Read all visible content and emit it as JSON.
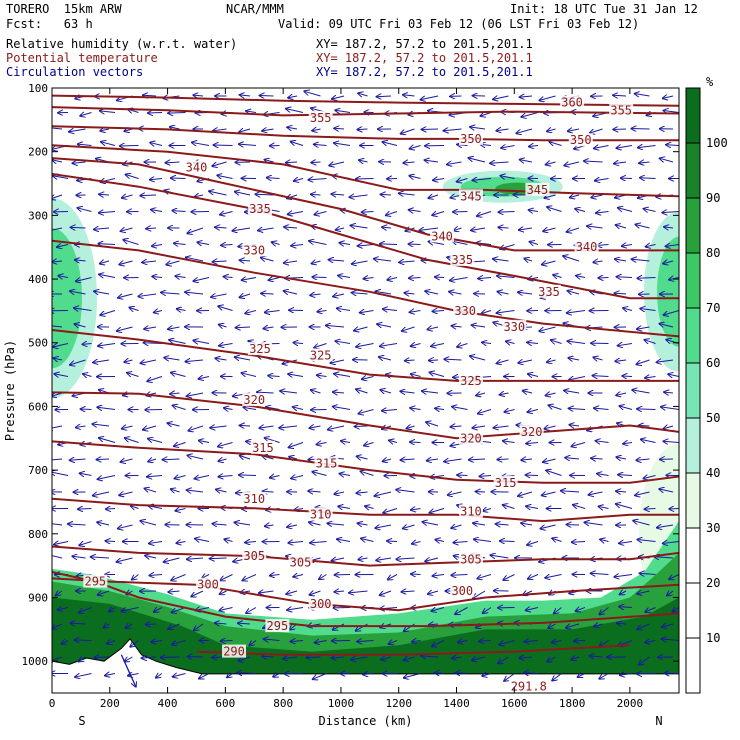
{
  "header": {
    "model": "TORERO  15km ARW",
    "org": "NCAR/MMM",
    "init": "Init: 18 UTC Tue 31 Jan 12",
    "fcst": "Fcst:   63 h",
    "valid": "Valid: 09 UTC Fri 03 Feb 12 (06 LST Fri 03 Feb 12)",
    "fields": [
      {
        "name": "Relative humidity (w.r.t. water)",
        "xy": "XY= 187.2, 57.2 to 201.5,201.1",
        "color": "#000000"
      },
      {
        "name": "Potential temperature",
        "xy": "XY= 187.2, 57.2 to 201.5,201.1",
        "color": "#8b1a1a"
      },
      {
        "name": "Circulation vectors",
        "xy": "XY= 187.2, 57.2 to 201.5,201.1",
        "color": "#00008b"
      }
    ]
  },
  "chart_data": {
    "type": "cross-section",
    "xlabel": "Distance (km)",
    "ylabel": "Pressure (hPa)",
    "xlim": [
      0,
      2170
    ],
    "ylim": [
      1050,
      100
    ],
    "x_ticks": [
      0,
      200,
      400,
      600,
      800,
      1000,
      1200,
      1400,
      1600,
      1800,
      2000
    ],
    "y_ticks": [
      100,
      200,
      300,
      400,
      500,
      600,
      700,
      800,
      900,
      1000
    ],
    "x_end_labels": {
      "left": "S",
      "right": "N"
    },
    "colorbar": {
      "unit": "%",
      "levels": [
        10,
        20,
        30,
        40,
        50,
        60,
        70,
        80,
        90,
        100
      ],
      "colors": [
        "#ffffff",
        "#ffffff",
        "#ffffff",
        "#e6fae6",
        "#b4f0dc",
        "#78e6b4",
        "#50dc8c",
        "#3cc864",
        "#28a03c",
        "#1a8228",
        "#0a6e1e"
      ]
    },
    "theta_contours": [
      {
        "value": 360,
        "points": [
          [
            0,
            112
          ],
          [
            400,
            115
          ],
          [
            800,
            120
          ],
          [
            1200,
            123
          ],
          [
            1600,
            125
          ],
          [
            2170,
            128
          ]
        ],
        "labels": [
          [
            1800,
            123
          ]
        ]
      },
      {
        "value": 355,
        "points": [
          [
            0,
            130
          ],
          [
            400,
            135
          ],
          [
            800,
            143
          ],
          [
            1200,
            140
          ],
          [
            1600,
            137
          ],
          [
            2170,
            140
          ]
        ],
        "labels": [
          [
            930,
            147
          ],
          [
            1970,
            135
          ]
        ]
      },
      {
        "value": 350,
        "points": [
          [
            0,
            160
          ],
          [
            400,
            165
          ],
          [
            800,
            175
          ],
          [
            1200,
            180
          ],
          [
            1400,
            180
          ],
          [
            1700,
            182
          ],
          [
            2170,
            182
          ]
        ],
        "labels": [
          [
            1450,
            180
          ],
          [
            1830,
            182
          ]
        ]
      },
      {
        "value": 345,
        "points": [
          [
            0,
            190
          ],
          [
            400,
            200
          ],
          [
            800,
            220
          ],
          [
            1200,
            260
          ],
          [
            1500,
            260
          ],
          [
            1800,
            265
          ],
          [
            2170,
            270
          ]
        ],
        "labels": [
          [
            1450,
            270
          ],
          [
            1680,
            260
          ]
        ]
      },
      {
        "value": 340,
        "points": [
          [
            0,
            210
          ],
          [
            300,
            220
          ],
          [
            600,
            250
          ],
          [
            1000,
            290
          ],
          [
            1300,
            330
          ],
          [
            1600,
            355
          ],
          [
            2170,
            355
          ]
        ],
        "labels": [
          [
            500,
            225
          ],
          [
            1350,
            333
          ],
          [
            1850,
            350
          ]
        ]
      },
      {
        "value": 335,
        "points": [
          [
            0,
            235
          ],
          [
            300,
            255
          ],
          [
            700,
            290
          ],
          [
            1000,
            330
          ],
          [
            1300,
            370
          ],
          [
            1600,
            395
          ],
          [
            2000,
            430
          ],
          [
            2170,
            430
          ]
        ],
        "labels": [
          [
            720,
            290
          ],
          [
            1420,
            370
          ],
          [
            1720,
            420
          ]
        ]
      },
      {
        "value": 330,
        "points": [
          [
            0,
            340
          ],
          [
            300,
            355
          ],
          [
            700,
            390
          ],
          [
            1100,
            420
          ],
          [
            1400,
            450
          ],
          [
            1700,
            470
          ],
          [
            2170,
            490
          ]
        ],
        "labels": [
          [
            700,
            355
          ],
          [
            1430,
            450
          ],
          [
            1600,
            475
          ]
        ]
      },
      {
        "value": 325,
        "points": [
          [
            0,
            480
          ],
          [
            300,
            495
          ],
          [
            700,
            520
          ],
          [
            1100,
            550
          ],
          [
            1400,
            560
          ],
          [
            1700,
            560
          ],
          [
            2000,
            560
          ],
          [
            2170,
            560
          ]
        ],
        "labels": [
          [
            720,
            510
          ],
          [
            930,
            520
          ],
          [
            1450,
            560
          ]
        ]
      },
      {
        "value": 320,
        "points": [
          [
            0,
            578
          ],
          [
            300,
            580
          ],
          [
            700,
            600
          ],
          [
            1100,
            630
          ],
          [
            1400,
            650
          ],
          [
            1700,
            640
          ],
          [
            2000,
            630
          ],
          [
            2170,
            640
          ]
        ],
        "labels": [
          [
            700,
            590
          ],
          [
            1450,
            650
          ],
          [
            1660,
            640
          ]
        ]
      },
      {
        "value": 315,
        "points": [
          [
            0,
            655
          ],
          [
            300,
            665
          ],
          [
            700,
            675
          ],
          [
            1100,
            700
          ],
          [
            1400,
            715
          ],
          [
            1700,
            720
          ],
          [
            2000,
            720
          ],
          [
            2170,
            710
          ]
        ],
        "labels": [
          [
            730,
            665
          ],
          [
            950,
            690
          ],
          [
            1570,
            720
          ]
        ]
      },
      {
        "value": 310,
        "points": [
          [
            0,
            745
          ],
          [
            300,
            755
          ],
          [
            700,
            760
          ],
          [
            1100,
            770
          ],
          [
            1400,
            770
          ],
          [
            1700,
            780
          ],
          [
            2000,
            770
          ],
          [
            2170,
            770
          ]
        ],
        "labels": [
          [
            700,
            745
          ],
          [
            930,
            770
          ],
          [
            1450,
            765
          ]
        ]
      },
      {
        "value": 305,
        "points": [
          [
            0,
            820
          ],
          [
            300,
            830
          ],
          [
            700,
            835
          ],
          [
            1100,
            850
          ],
          [
            1400,
            845
          ],
          [
            1700,
            840
          ],
          [
            2000,
            840
          ],
          [
            2170,
            830
          ]
        ],
        "labels": [
          [
            700,
            835
          ],
          [
            860,
            845
          ],
          [
            1450,
            840
          ]
        ]
      },
      {
        "value": 300,
        "points": [
          [
            0,
            870
          ],
          [
            200,
            875
          ],
          [
            500,
            880
          ],
          [
            900,
            910
          ],
          [
            1200,
            920
          ],
          [
            1500,
            900
          ],
          [
            1800,
            890
          ],
          [
            2170,
            880
          ]
        ],
        "labels": [
          [
            540,
            880
          ],
          [
            930,
            910
          ],
          [
            1420,
            890
          ]
        ]
      },
      {
        "value": 295,
        "points": [
          [
            0,
            860
          ],
          [
            150,
            875
          ],
          [
            300,
            900
          ],
          [
            600,
            930
          ],
          [
            900,
            945
          ],
          [
            1300,
            945
          ],
          [
            1700,
            940
          ],
          [
            2170,
            925
          ]
        ],
        "labels": [
          [
            150,
            875
          ],
          [
            780,
            945
          ]
        ]
      },
      {
        "value": 290,
        "points": [
          [
            500,
            985
          ],
          [
            800,
            990
          ],
          [
            1200,
            990
          ],
          [
            1600,
            985
          ],
          [
            2000,
            975
          ]
        ],
        "labels": [
          [
            630,
            985
          ]
        ]
      },
      {
        "value": 291.8,
        "points": [],
        "labels": [
          [
            1650,
            1040
          ]
        ]
      }
    ]
  }
}
